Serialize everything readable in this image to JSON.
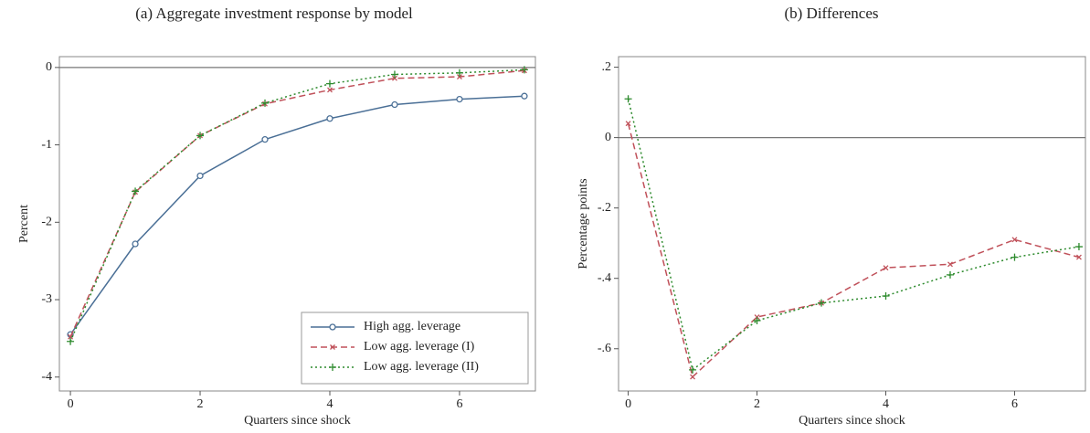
{
  "chart_data": [
    {
      "type": "line",
      "title": "(a) Aggregate investment response by model",
      "x_label": "Quarters since shock",
      "y_label": "Percent",
      "x": [
        0,
        1,
        2,
        3,
        4,
        5,
        6,
        7
      ],
      "xlim": [
        -0.17,
        7.17
      ],
      "xticks": [
        0,
        2,
        4,
        6
      ],
      "ylim": [
        -4.18,
        0.14
      ],
      "yticks": [
        -4,
        -3,
        -2,
        -1,
        0
      ],
      "reference_line": 0,
      "legend": "lower right",
      "series": [
        {
          "name": "High agg. leverage",
          "color": "#4a6f96",
          "dash": "solid",
          "marker": "circle",
          "values": [
            -3.45,
            -2.28,
            -1.4,
            -0.93,
            -0.66,
            -0.48,
            -0.41,
            -0.37
          ]
        },
        {
          "name": "Low agg. leverage (I)",
          "color": "#c0515a",
          "dash": "dashed",
          "marker": "x",
          "values": [
            -3.48,
            -1.61,
            -0.88,
            -0.47,
            -0.29,
            -0.14,
            -0.12,
            -0.04
          ]
        },
        {
          "name": "Low agg. leverage (II)",
          "color": "#2e8b2e",
          "dash": "dotted",
          "marker": "plus",
          "values": [
            -3.54,
            -1.6,
            -0.88,
            -0.46,
            -0.21,
            -0.09,
            -0.07,
            -0.03
          ]
        }
      ]
    },
    {
      "type": "line",
      "title": "(b) Differences",
      "x_label": "Quarters since shock",
      "y_label": "Percentage points",
      "x": [
        0,
        1,
        2,
        3,
        4,
        5,
        6,
        7
      ],
      "xlim": [
        -0.15,
        7.1
      ],
      "xticks": [
        0,
        2,
        4,
        6
      ],
      "ylim": [
        -0.72,
        0.23
      ],
      "yticks": [
        {
          "value": -0.6,
          "label": "-.6"
        },
        {
          "value": -0.4,
          "label": "-.4"
        },
        {
          "value": -0.2,
          "label": "-.2"
        },
        0,
        {
          "value": 0.2,
          "label": ".2"
        }
      ],
      "reference_line": 0,
      "series": [
        {
          "color": "#c0515a",
          "dash": "dashed",
          "marker": "x",
          "values": [
            0.04,
            -0.68,
            -0.51,
            -0.47,
            -0.37,
            -0.36,
            -0.29,
            -0.34
          ]
        },
        {
          "color": "#2e8b2e",
          "dash": "dotted",
          "marker": "plus",
          "values": [
            0.11,
            -0.66,
            -0.52,
            -0.47,
            -0.45,
            -0.39,
            -0.34,
            -0.31
          ]
        }
      ]
    }
  ]
}
